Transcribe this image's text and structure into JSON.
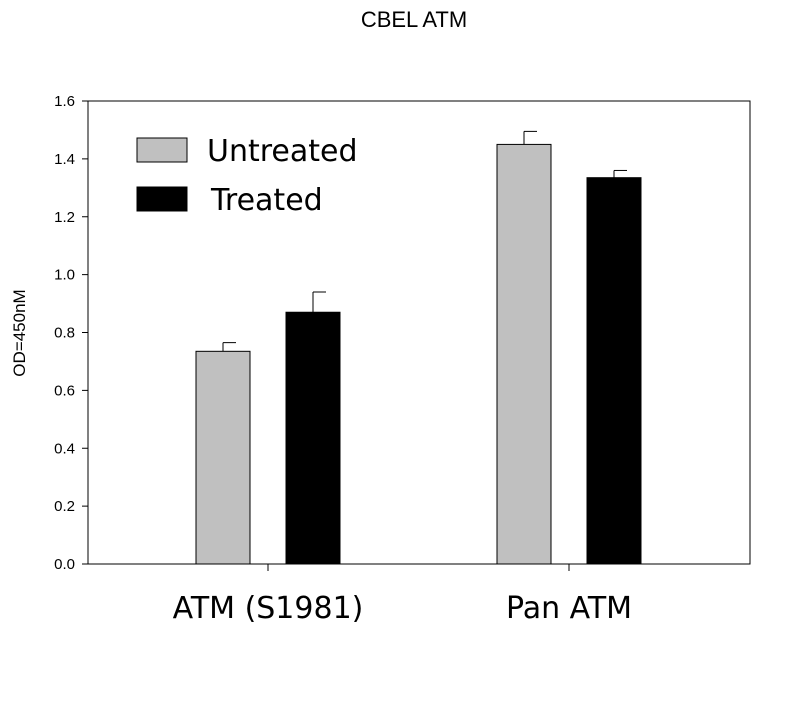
{
  "chart_data": {
    "type": "bar",
    "title": "CBEL ATM",
    "xlabel": "",
    "ylabel": "OD=450nM",
    "categories": [
      "ATM (S1981)",
      "Pan ATM"
    ],
    "series": [
      {
        "name": "Untreated",
        "values": [
          0.735,
          1.45
        ],
        "errors": [
          0.03,
          0.045
        ],
        "color": "#c0c0c0"
      },
      {
        "name": "Treated",
        "values": [
          0.87,
          1.335
        ],
        "errors": [
          0.07,
          0.025
        ],
        "color": "#000000"
      }
    ],
    "ylim": [
      0,
      1.6
    ],
    "yticks": [
      "0.0",
      "0.2",
      "0.4",
      "0.6",
      "0.8",
      "1.0",
      "1.2",
      "1.4",
      "1.6"
    ],
    "legend_position": "top-left",
    "grid": false
  }
}
